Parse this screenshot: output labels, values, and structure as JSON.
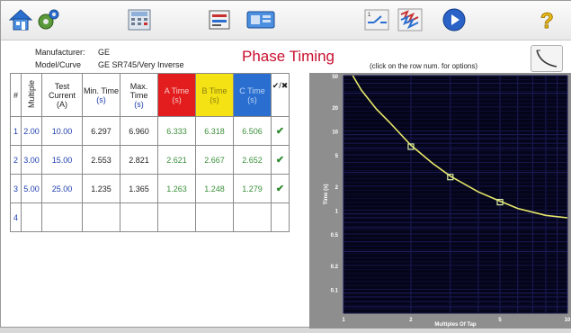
{
  "info": {
    "manufacturer_label": "Manufacturer:",
    "manufacturer_value": "GE",
    "model_label": "Model/Curve",
    "model_value": "GE SR745/Very Inverse",
    "title": "Phase Timing",
    "hint": "(click on the row num. for options)"
  },
  "table": {
    "headers": {
      "num": "#",
      "multiple": "Multiple",
      "test_current": "Test Current",
      "test_current_unit": "(A)",
      "min_time": "Min. Time",
      "min_time_unit": "(s)",
      "max_time": "Max. Time",
      "max_time_unit": "(s)",
      "a_time": "A Time",
      "a_unit": "(s)",
      "b_time": "B Time",
      "b_unit": "(s)",
      "c_time": "C Time",
      "c_unit": "(s)",
      "check": "✔/✖"
    },
    "rows": [
      {
        "num": "1",
        "multiple": "2.00",
        "current": "10.00",
        "min": "6.297",
        "max": "6.960",
        "a": "6.333",
        "b": "6.318",
        "c": "6.506",
        "check": "✔"
      },
      {
        "num": "2",
        "multiple": "3.00",
        "current": "15.00",
        "min": "2.553",
        "max": "2.821",
        "a": "2.621",
        "b": "2.667",
        "c": "2.652",
        "check": "✔"
      },
      {
        "num": "3",
        "multiple": "5.00",
        "current": "25.00",
        "min": "1.235",
        "max": "1.365",
        "a": "1.263",
        "b": "1.248",
        "c": "1.279",
        "check": "✔"
      },
      {
        "num": "4",
        "multiple": "",
        "current": "",
        "min": "",
        "max": "",
        "a": "",
        "b": "",
        "c": "",
        "check": ""
      }
    ]
  },
  "colors": {
    "phase_a": "#e31d1d",
    "phase_b": "#f4e215",
    "phase_c": "#2a6fd0",
    "curve": "#e8e86a",
    "plot_bg": "#05051a",
    "title": "#c8102e"
  },
  "chart_data": {
    "type": "line",
    "xlabel": "Multiples Of Tap",
    "ylabel": "Time (s)",
    "xscale": "log",
    "yscale": "log",
    "xlim": [
      1,
      10
    ],
    "ylim": [
      0.05,
      50
    ],
    "x_ticks": [
      "1",
      "2",
      "5",
      "10"
    ],
    "y_ticks": [
      "50",
      "20",
      "10",
      "5",
      "2",
      "1",
      "0.5",
      "0.2",
      "0.1"
    ],
    "curve_x": [
      1.1,
      1.2,
      1.4,
      1.6,
      2.0,
      2.5,
      3.0,
      4.0,
      5.0,
      6.0,
      8.0,
      10.0
    ],
    "curve_y": [
      50,
      33,
      19,
      13,
      6.6,
      3.9,
      2.69,
      1.7,
      1.3,
      1.05,
      0.86,
      0.8
    ],
    "points": [
      {
        "x": 2.0,
        "y": 6.333
      },
      {
        "x": 3.0,
        "y": 2.621
      },
      {
        "x": 5.0,
        "y": 1.263
      }
    ],
    "grid": true
  }
}
